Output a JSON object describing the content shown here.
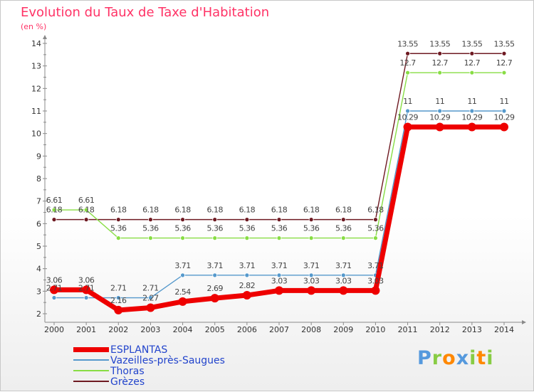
{
  "chart_data": {
    "type": "line",
    "title": "Evolution du Taux de Taxe d'Habitation",
    "subtitle": "(en %)",
    "categories": [
      "2000",
      "2001",
      "2002",
      "2003",
      "2004",
      "2005",
      "2006",
      "2007",
      "2008",
      "2009",
      "2010",
      "2011",
      "2012",
      "2013",
      "2014"
    ],
    "ylim": [
      2,
      14
    ],
    "yticks": [
      2,
      3,
      4,
      5,
      6,
      7,
      8,
      9,
      10,
      11,
      12,
      13,
      14
    ],
    "grid": false,
    "legend_position": "bottom-left",
    "series": [
      {
        "name": "Grèzes",
        "color": "#6e1a22",
        "width": 1.4,
        "dot": 3,
        "values": [
          6.18,
          6.18,
          6.18,
          6.18,
          6.18,
          6.18,
          6.18,
          6.18,
          6.18,
          6.18,
          6.18,
          13.55,
          13.55,
          13.55,
          13.55
        ],
        "labels": [
          "6.18",
          "6.18",
          "6.18",
          "6.18",
          "6.18",
          "6.18",
          "6.18",
          "6.18",
          "6.18",
          "6.18",
          "6.18",
          "13.55",
          "13.55",
          "13.55",
          "13.55"
        ]
      },
      {
        "name": "Thoras",
        "color": "#88dd44",
        "width": 1.4,
        "dot": 3,
        "values": [
          6.61,
          6.61,
          5.36,
          5.36,
          5.36,
          5.36,
          5.36,
          5.36,
          5.36,
          5.36,
          5.36,
          12.7,
          12.7,
          12.7,
          12.7
        ],
        "labels": [
          "6.61",
          "6.61",
          "5.36",
          "5.36",
          "5.36",
          "5.36",
          "5.36",
          "5.36",
          "5.36",
          "5.36",
          "5.36",
          "12.7",
          "12.7",
          "12.7",
          "12.7"
        ]
      },
      {
        "name": "Vazeilles-près-Saugues",
        "color": "#5599cc",
        "width": 1.4,
        "dot": 3,
        "values": [
          2.71,
          2.71,
          2.71,
          2.71,
          3.71,
          3.71,
          3.71,
          3.71,
          3.71,
          3.71,
          3.71,
          11,
          11,
          11,
          11
        ],
        "labels": [
          "2.71",
          "2.71",
          "2.71",
          "2.71",
          "3.71",
          "3.71",
          "3.71",
          "3.71",
          "3.71",
          "3.71",
          "3.71",
          "11",
          "11",
          "11",
          "11"
        ]
      },
      {
        "name": "ESPLANTAS",
        "color": "#ee0000",
        "width": 7,
        "dot": 6,
        "values": [
          3.06,
          3.06,
          2.16,
          2.27,
          2.54,
          2.69,
          2.82,
          3.03,
          3.03,
          3.03,
          3.03,
          10.29,
          10.29,
          10.29,
          10.29
        ],
        "labels": [
          "3.06",
          "3.06",
          "2.16",
          "2.27",
          "2.54",
          "2.69",
          "2.82",
          "3.03",
          "3.03",
          "3.03",
          "3.03",
          "10.29",
          "10.29",
          "10.29",
          "10.29"
        ]
      }
    ],
    "legend": [
      {
        "name": "ESPLANTAS",
        "color": "#ee0000",
        "thickness": 7
      },
      {
        "name": "Vazeilles-près-Saugues",
        "color": "#5599cc",
        "thickness": 2
      },
      {
        "name": "Thoras",
        "color": "#88dd44",
        "thickness": 2
      },
      {
        "name": "Grèzes",
        "color": "#6e1a22",
        "thickness": 2
      }
    ]
  },
  "brand": {
    "letters": [
      "P",
      "r",
      "o",
      "x",
      "i",
      "t",
      "i"
    ],
    "colors": [
      "#5599dd",
      "#88cc44",
      "#ff8800",
      "#5599dd",
      "#88cc44",
      "#ff8800",
      "#88cc44"
    ]
  }
}
